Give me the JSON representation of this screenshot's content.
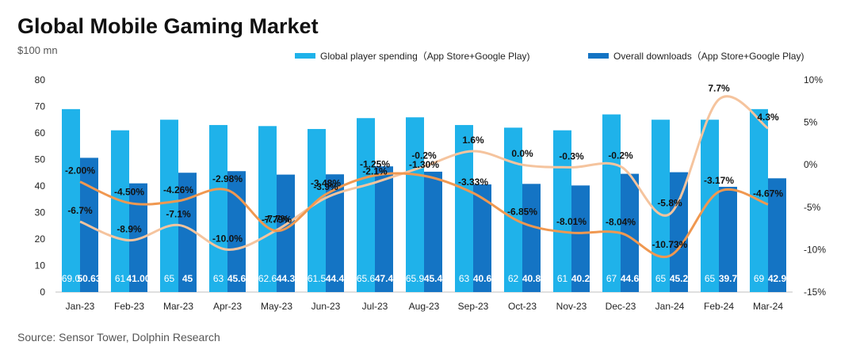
{
  "header": {
    "title": "Global Mobile Gaming Market",
    "unit": "$100 mn",
    "source": "Source: Sensor Tower, Dolphin Research"
  },
  "colors": {
    "spending": "#1FB2EA",
    "downloads": "#1474C4",
    "spending_growth_line": "#F5C49E",
    "downloads_growth_line": "#F09850",
    "axis_text": "#222222"
  },
  "chart_data": {
    "type": "bar",
    "title": "Global Mobile Gaming Market",
    "ylabel": "$100 mn",
    "ylim": [
      0,
      80
    ],
    "y_ticks": [
      "0",
      "10",
      "20",
      "30",
      "40",
      "50",
      "60",
      "70",
      "80"
    ],
    "y2lim": [
      -15,
      10
    ],
    "y2_ticks": [
      "-15%",
      "-10%",
      "-5%",
      "0%",
      "5%",
      "10%"
    ],
    "legend_position": "top",
    "categories": [
      "Jan-23",
      "Feb-23",
      "Mar-23",
      "Apr-23",
      "May-23",
      "Jun-23",
      "Jul-23",
      "Aug-23",
      "Sep-23",
      "Oct-23",
      "Nov-23",
      "Dec-23",
      "Jan-24",
      "Feb-24",
      "Mar-24"
    ],
    "series": [
      {
        "name": "Global player spending（App Store+Google Play)",
        "kind": "bar",
        "values": [
          69.0,
          61,
          65,
          63,
          62.6,
          61.5,
          65.6,
          65.9,
          63,
          62,
          61,
          67,
          65,
          65,
          69
        ],
        "labels": [
          "69.0",
          "61",
          "65",
          "63",
          "62.6",
          "61.5",
          "65.6",
          "65.9",
          "63",
          "62",
          "61",
          "67",
          "65",
          "65",
          "69"
        ]
      },
      {
        "name": "Overall downloads（App Store+Google Play)",
        "kind": "bar",
        "values": [
          50.63,
          41.0,
          45,
          45.6,
          44.3,
          44.4,
          47.4,
          45.4,
          40.6,
          40.8,
          40.2,
          44.6,
          45.2,
          39.7,
          42.9
        ],
        "labels": [
          "50.63",
          "41.00",
          "45",
          "45.6",
          "44.3",
          "44.4",
          "47.4",
          "45.4",
          "40.6",
          "40.8",
          "40.2",
          "44.6",
          "45.2",
          "39.7",
          "42.9"
        ]
      },
      {
        "kind": "line",
        "axis": "right",
        "values": [
          -6.7,
          -8.9,
          -7.1,
          -10.0,
          -7.7,
          -3.9,
          -2.1,
          -0.2,
          1.6,
          0.0,
          -0.3,
          -0.2,
          -5.8,
          7.7,
          4.3
        ],
        "labels": [
          "-6.7%",
          "-8.9%",
          "-7.1%",
          "-10.0%",
          "-7.7%",
          "-3.9%",
          "-2.1%",
          "-0.2%",
          "1.6%",
          "0.0%",
          "-0.3%",
          "-0.2%",
          "-5.8%",
          "7.7%",
          "4.3%"
        ]
      },
      {
        "kind": "line",
        "axis": "right",
        "values": [
          -2.0,
          -4.5,
          -4.26,
          -2.98,
          -7.79,
          -3.48,
          -1.25,
          -1.3,
          -3.33,
          -6.85,
          -8.01,
          -8.04,
          -10.73,
          -3.17,
          -4.67
        ],
        "labels": [
          "-2.00%",
          "-4.50%",
          "-4.26%",
          "-2.98%",
          "-7.79%",
          "-3.48%",
          "-1.25%",
          "-1.30%",
          "-3.33%",
          "-6.85%",
          "-8.01%",
          "-8.04%",
          "-10.73%",
          "-3.17%",
          "-4.67%"
        ]
      }
    ]
  }
}
